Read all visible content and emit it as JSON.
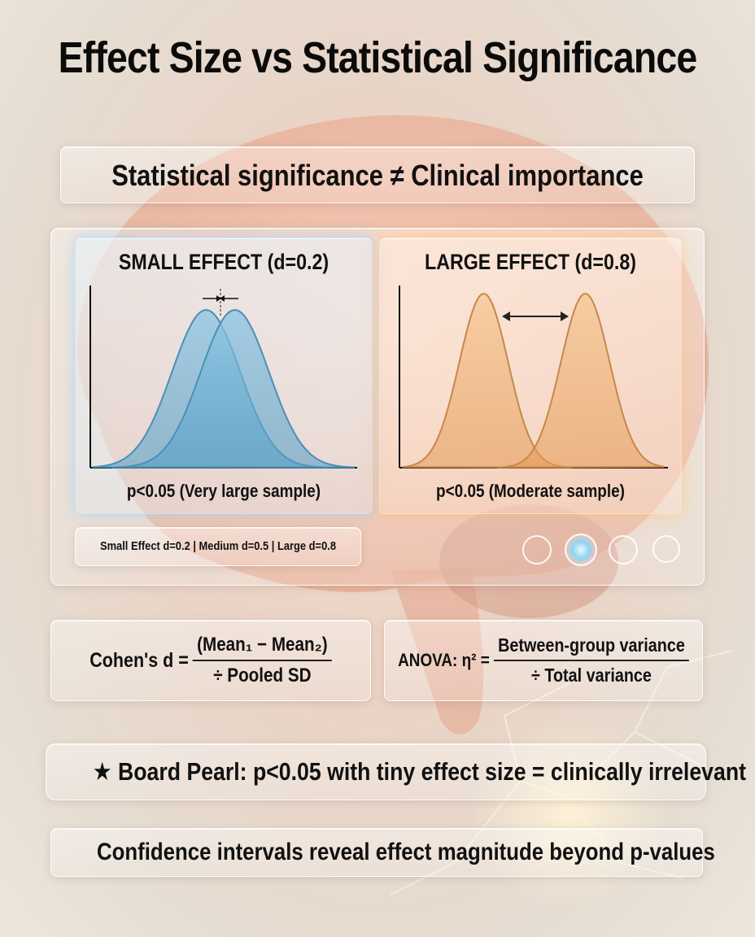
{
  "title": "Effect Size vs Statistical Significance",
  "subtitle": "Statistical significance ≠ Clinical importance",
  "panels": {
    "small": {
      "heading": "SMALL EFFECT (d=0.2)",
      "caption": "p<0.05 (Very large sample)",
      "effect_size_d": 0.2,
      "color": "#6fb3d6"
    },
    "large": {
      "heading": "LARGE EFFECT (d=0.8)",
      "caption": "p<0.05 (Moderate sample)",
      "effect_size_d": 0.8,
      "color": "#e8a460"
    }
  },
  "scale_note": "Small Effect d=0.2 | Medium d=0.5 | Large d=0.8",
  "formulas": {
    "cohens": {
      "lhs": "Cohen's d =",
      "numerator": "(Mean₁ − Mean₂)",
      "denominator": "÷ Pooled SD"
    },
    "anova": {
      "lhs": "ANOVA: η² =",
      "numerator": "Between-group variance",
      "denominator": "÷ Total variance"
    }
  },
  "pearl": "★ Board Pearl: p<0.05 with tiny effect size = clinically irrelevant",
  "footer": "Confidence intervals reveal effect magnitude beyond p-values",
  "colors": {
    "accent_blue": "#6fb3d6",
    "accent_orange": "#e8a460",
    "text": "#111111"
  }
}
